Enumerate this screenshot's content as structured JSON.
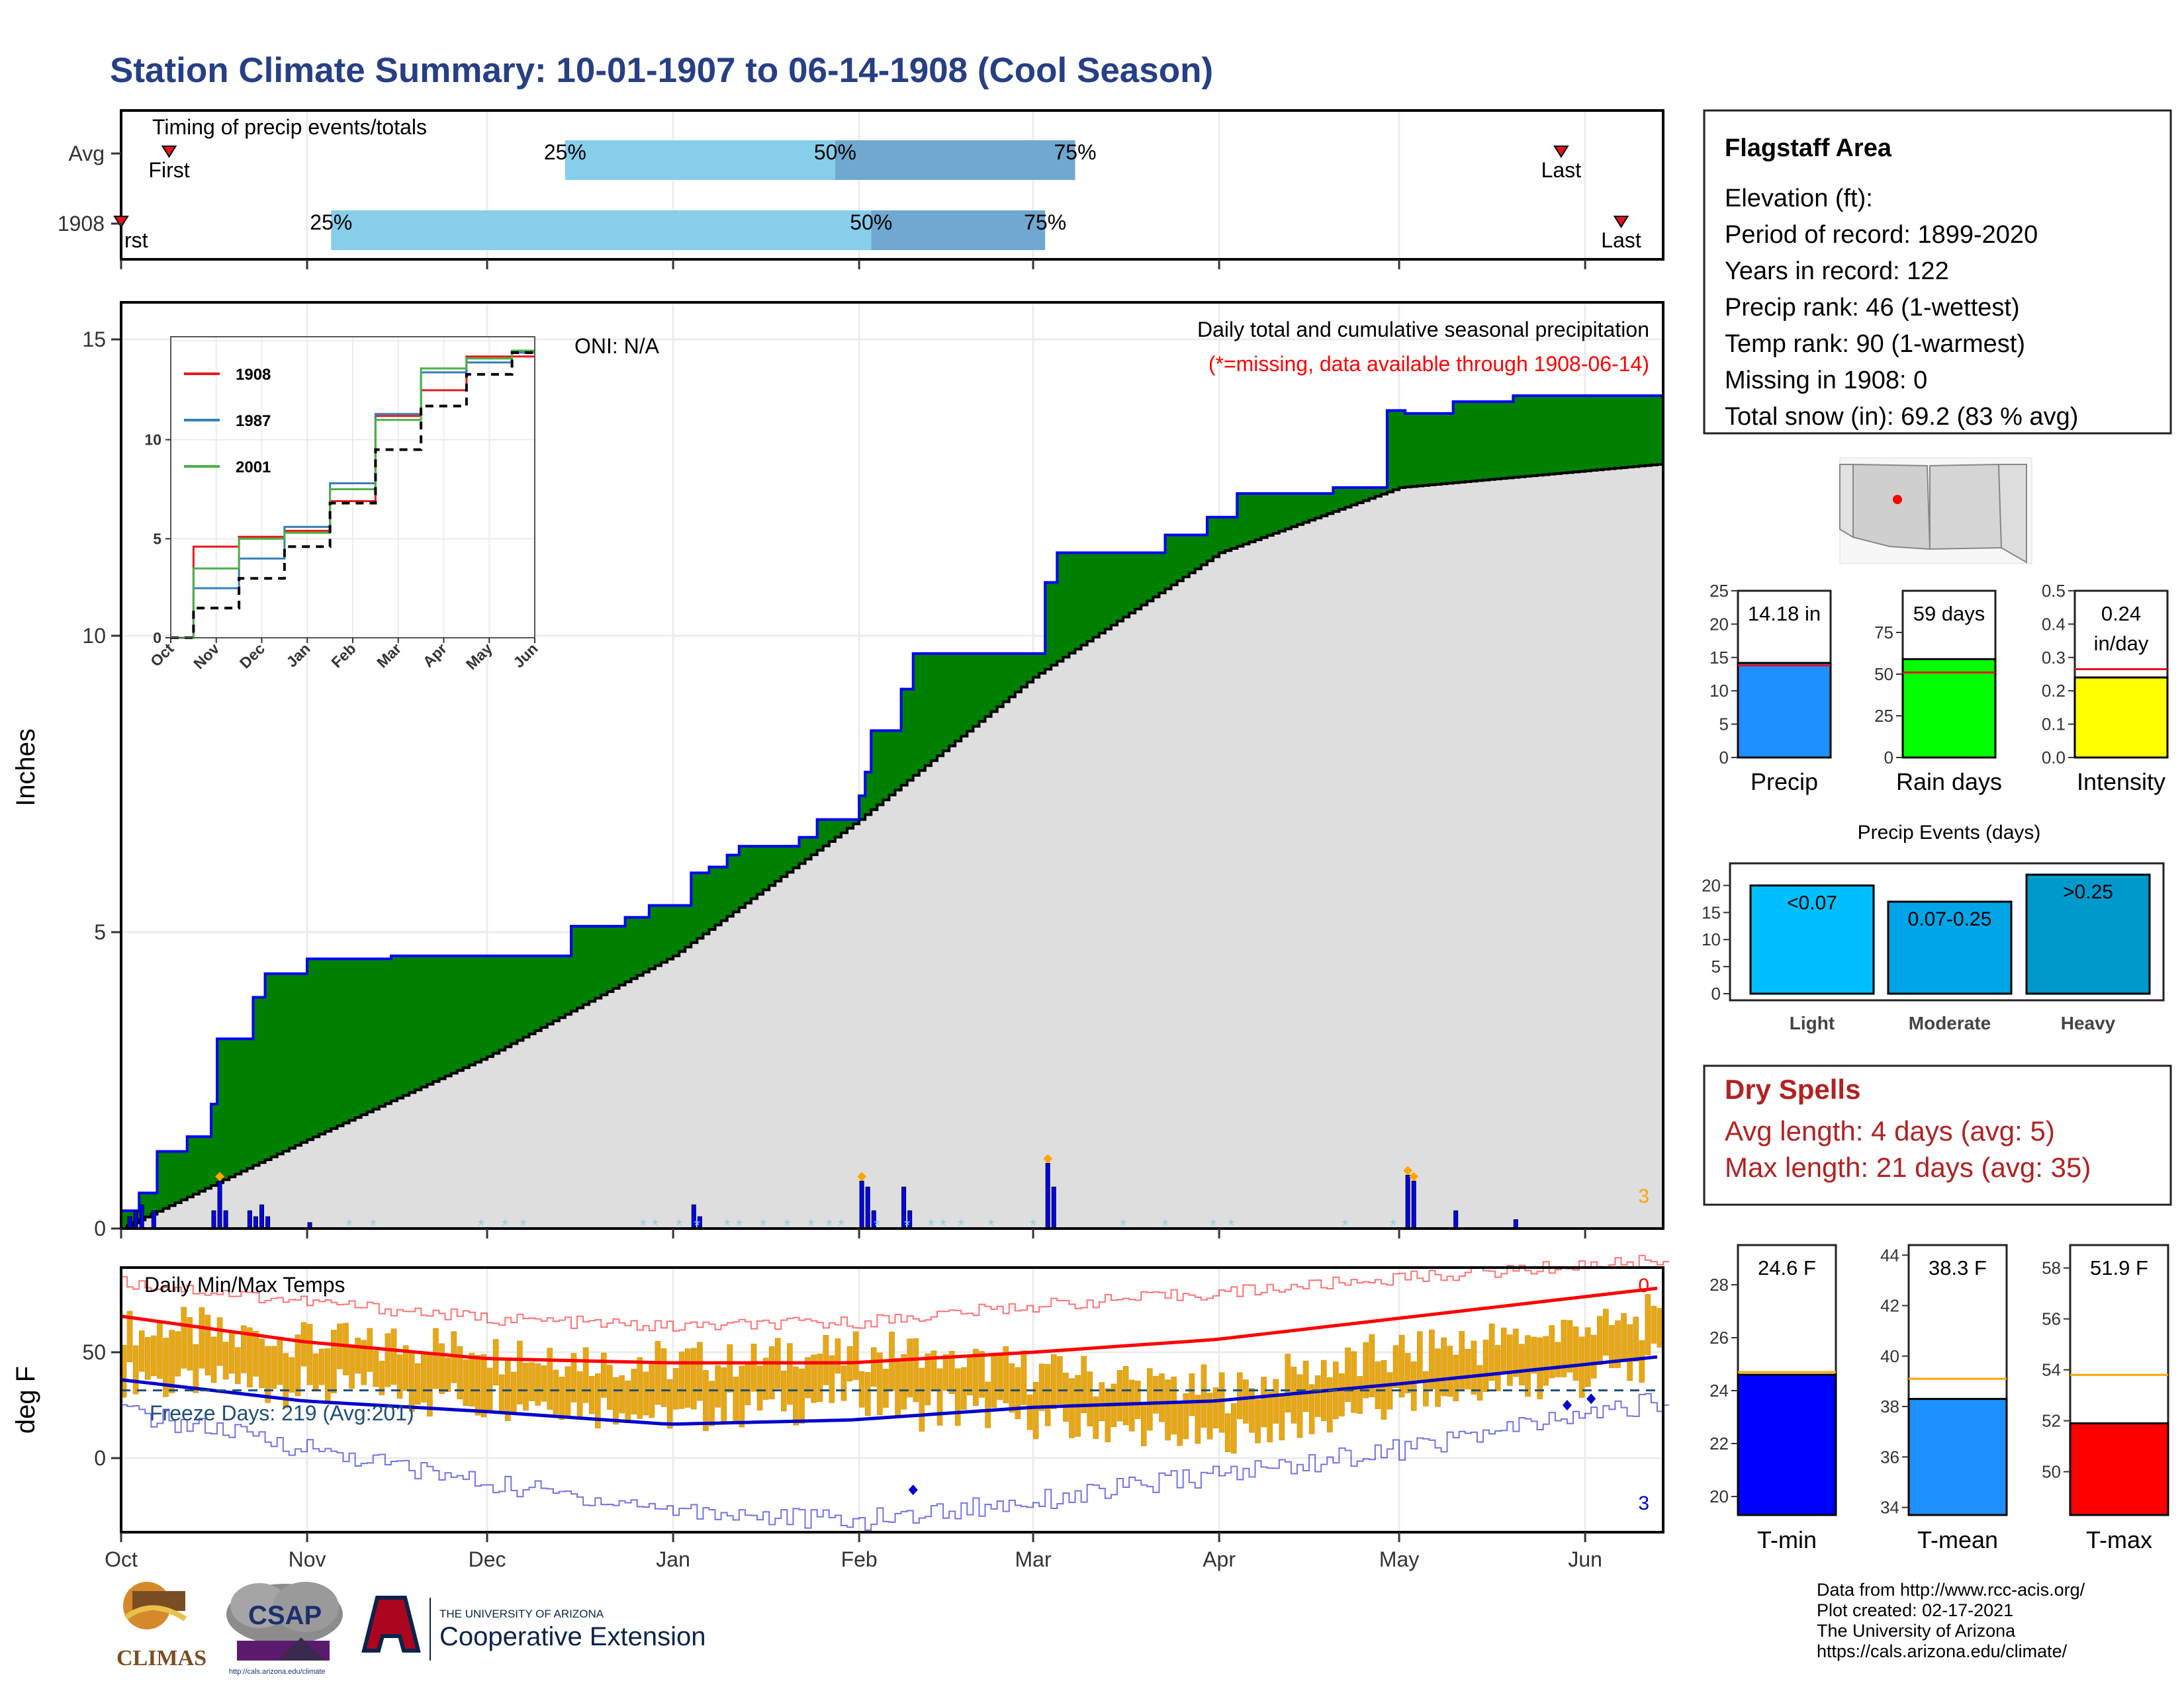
{
  "title": "Station Climate Summary: 10-01-1907 to 06-14-1908 (Cool Season)",
  "timing": {
    "label": "Timing of precip events/totals",
    "rows": [
      "Avg",
      "1908"
    ],
    "first_label": "First",
    "first_label_1908": "rst",
    "last_label": "Last",
    "pct_labels": [
      "25%",
      "50%",
      "75%"
    ],
    "avg": {
      "first": "1907-10-09",
      "p25": "1907-12-14",
      "p50": "1908-01-28",
      "p75": "1908-03-08",
      "last": "1908-05-28"
    },
    "y1908": {
      "first": "1907-10-01",
      "p25": "1907-11-05",
      "p50": "1908-02-03",
      "p75": "1908-03-03",
      "last": "1908-06-07"
    },
    "colors": {
      "light": "#87ceeb",
      "dark": "#6fa8d0",
      "marker": "#e8101a"
    }
  },
  "precip_panel": {
    "ylabel": "Inches",
    "title": "Daily total and cumulative seasonal precipitation",
    "note": "(*=missing, data available through 1908-06-14)",
    "oni": "ONI: N/A",
    "count_label": "3",
    "yticks": [
      "0",
      "5",
      "10",
      "15"
    ],
    "colors": {
      "observed": "#0000ff",
      "excess": "#008000",
      "average": "#dedede",
      "daily": "#0000ff",
      "missing": "#87ceeb",
      "extreme": "#ffa500"
    }
  },
  "inset": {
    "series": [
      "1908",
      "1987",
      "2001"
    ],
    "colors": [
      "#e41a1c",
      "#377eb8",
      "#4daf4a"
    ],
    "yticks": [
      "0",
      "5",
      "10"
    ],
    "months": [
      "Oct",
      "Nov",
      "Dec",
      "Jan",
      "Feb",
      "Mar",
      "Apr",
      "May",
      "Jun"
    ]
  },
  "temp_panel": {
    "ylabel": "deg F",
    "title": "Daily Min/Max Temps",
    "freeze": "Freeze Days: 219 (Avg:201)",
    "count_top": "0",
    "count_bottom": "3",
    "yticks": [
      "0",
      "50"
    ],
    "colors": {
      "bars": "#e6a817",
      "max_avg": "#ff0000",
      "min_avg": "#0000cd",
      "freeze_line": "#1f4e79"
    }
  },
  "x_months": [
    "Oct",
    "Nov",
    "Dec",
    "Jan",
    "Feb",
    "Mar",
    "Apr",
    "May",
    "Jun"
  ],
  "station": {
    "name": "Flagstaff Area",
    "lines": [
      "Elevation (ft):",
      "Period of record: 1899-2020",
      "Years in record: 122",
      "Precip rank: 46 (1-wettest)",
      "Temp rank: 90 (1-warmest)",
      "Missing in 1908: 0",
      "Total snow (in): 69.2 (83 % avg)"
    ]
  },
  "precip_bars": [
    {
      "label": "Precip",
      "value_text": "14.18 in",
      "value": 14.18,
      "avg": 13.8,
      "ymax": 25,
      "yticks": [
        "0",
        "5",
        "10",
        "15",
        "20",
        "25"
      ],
      "tick_values": [
        0,
        5,
        10,
        15,
        20,
        25
      ],
      "color": "#1e90ff"
    },
    {
      "label": "Rain days",
      "value_text": "59 days",
      "value": 59,
      "avg": 51,
      "ymax": 100,
      "yticks": [
        "0",
        "25",
        "50",
        "75"
      ],
      "tick_values": [
        0,
        25,
        50,
        75
      ],
      "color": "#00ff00"
    },
    {
      "label": "Intensity",
      "value_text": "0.24",
      "value_text2": "in/day",
      "value": 0.24,
      "avg": 0.265,
      "ymax": 0.5,
      "yticks": [
        "0.0",
        "0.1",
        "0.2",
        "0.3",
        "0.4",
        "0.5"
      ],
      "tick_values": [
        0,
        0.1,
        0.2,
        0.3,
        0.4,
        0.5
      ],
      "color": "#ffff00"
    }
  ],
  "events": {
    "title": "Precip Events (days)",
    "yticks": [
      "0",
      "5",
      "10",
      "15",
      "20"
    ],
    "bars": [
      {
        "label": "Light",
        "inner": "<0.07",
        "value": 20,
        "color": "#00bfff"
      },
      {
        "label": "Moderate",
        "inner": "0.07-0.25",
        "value": 17,
        "color": "#00a5e8"
      },
      {
        "label": "Heavy",
        "inner": ">0.25",
        "value": 22,
        "color": "#0099cc"
      }
    ]
  },
  "dry_spells": {
    "title": "Dry Spells",
    "lines": [
      "Avg length: 4 days (avg: 5)",
      "Max length: 21 days (avg: 35)"
    ],
    "color": "#b22222"
  },
  "temp_bars": [
    {
      "label": "T-min",
      "value_text": "24.6 F",
      "value": 24.6,
      "avg": 24.7,
      "ymin": 19.3,
      "ymax": 29.5,
      "yticks": [
        "20",
        "22",
        "24",
        "26",
        "28"
      ],
      "tick_values": [
        20,
        22,
        24,
        26,
        28
      ],
      "color": "#0000ff"
    },
    {
      "label": "T-mean",
      "value_text": "38.3 F",
      "value": 38.3,
      "avg": 39.1,
      "ymin": 33.7,
      "ymax": 44.4,
      "yticks": [
        "34",
        "36",
        "38",
        "40",
        "42",
        "44"
      ],
      "tick_values": [
        34,
        36,
        38,
        40,
        42,
        44
      ],
      "color": "#1e90ff"
    },
    {
      "label": "T-max",
      "value_text": "51.9 F",
      "value": 51.9,
      "avg": 53.8,
      "ymin": 48.3,
      "ymax": 58.9,
      "yticks": [
        "50",
        "52",
        "54",
        "56",
        "58"
      ],
      "tick_values": [
        50,
        52,
        54,
        56,
        58
      ],
      "color": "#ff0000"
    }
  ],
  "footer": [
    "Data from http://www.rcc-acis.org/",
    "Plot created: 02-17-2021",
    "The University of Arizona",
    "https://cals.arizona.edu/climate/"
  ],
  "logos": {
    "climas": "CLIMAS",
    "csap": "CSAP",
    "csap_url": "http://cals.arizona.edu/climate",
    "ua_small": "THE UNIVERSITY OF ARIZONA",
    "ua_big": "Cooperative Extension"
  },
  "chart_data": [
    {
      "type": "area",
      "title": "Daily total and cumulative seasonal precipitation",
      "ylabel": "Inches",
      "ylim": [
        0,
        15.3
      ],
      "series": [
        {
          "name": "Observed cumulative 1908",
          "x": [
            "1907-10-01",
            "1907-10-04",
            "1907-10-07",
            "1907-10-12",
            "1907-10-16",
            "1907-10-17",
            "1907-10-23",
            "1907-10-25",
            "1907-11-01",
            "1907-11-15",
            "1907-12-15",
            "1907-12-24",
            "1907-12-28",
            "1908-01-04",
            "1908-01-07",
            "1908-01-10",
            "1908-01-12",
            "1908-01-22",
            "1908-01-25",
            "1908-02-01",
            "1908-02-02",
            "1908-02-03",
            "1908-02-08",
            "1908-02-10",
            "1908-03-03",
            "1908-03-05",
            "1908-03-23",
            "1908-03-30",
            "1908-04-04",
            "1908-04-20",
            "1908-04-29",
            "1908-05-02",
            "1908-05-10",
            "1908-05-20",
            "1908-06-14"
          ],
          "y": [
            0.3,
            0.6,
            1.3,
            1.55,
            2.1,
            3.2,
            3.9,
            4.3,
            4.55,
            4.6,
            5.1,
            5.25,
            5.45,
            6.0,
            6.1,
            6.3,
            6.45,
            6.6,
            6.9,
            7.3,
            7.7,
            8.4,
            9.1,
            9.7,
            10.9,
            11.4,
            11.7,
            12.0,
            12.4,
            12.5,
            13.8,
            13.75,
            13.95,
            14.05,
            14.18
          ]
        },
        {
          "name": "Average cumulative",
          "x": [
            "1907-10-01",
            "1907-11-01",
            "1907-12-01",
            "1908-01-01",
            "1908-02-01",
            "1908-03-01",
            "1908-04-01",
            "1908-05-01",
            "1908-06-14"
          ],
          "y": [
            0.0,
            1.5,
            2.9,
            4.6,
            6.9,
            9.3,
            11.4,
            12.5,
            12.9
          ]
        }
      ],
      "daily_precip_in": {
        "x": [
          "1907-10-02",
          "1907-10-03",
          "1907-10-04",
          "1907-10-06",
          "1907-10-16",
          "1907-10-17",
          "1907-10-18",
          "1907-10-22",
          "1907-10-23",
          "1907-10-24",
          "1907-10-25",
          "1907-11-01",
          "1908-01-04",
          "1908-01-05",
          "1908-02-01",
          "1908-02-02",
          "1908-02-03",
          "1908-02-08",
          "1908-02-09",
          "1908-03-03",
          "1908-03-04",
          "1908-05-02",
          "1908-05-03",
          "1908-05-10",
          "1908-05-20"
        ],
        "y": [
          0.2,
          0.3,
          0.4,
          0.3,
          0.3,
          0.8,
          0.3,
          0.3,
          0.2,
          0.4,
          0.2,
          0.1,
          0.4,
          0.2,
          0.8,
          0.7,
          0.3,
          0.7,
          0.3,
          1.1,
          0.7,
          0.9,
          0.8,
          0.3,
          0.15
        ]
      }
    },
    {
      "type": "line",
      "title": "",
      "ylim": [
        0,
        15
      ],
      "series": [
        {
          "name": "1908",
          "x": [
            "Oct",
            "Nov",
            "Dec",
            "Jan",
            "Feb",
            "Mar",
            "Apr",
            "May",
            "Jun"
          ],
          "y": [
            0.0,
            4.6,
            5.1,
            5.4,
            6.9,
            11.2,
            12.5,
            14.2,
            14.2
          ]
        },
        {
          "name": "1987",
          "x": [
            "Oct",
            "Nov",
            "Dec",
            "Jan",
            "Feb",
            "Mar",
            "Apr",
            "May",
            "Jun"
          ],
          "y": [
            0.0,
            2.5,
            4.0,
            5.6,
            7.8,
            11.3,
            13.4,
            13.9,
            14.4
          ]
        },
        {
          "name": "2001",
          "x": [
            "Oct",
            "Nov",
            "Dec",
            "Jan",
            "Feb",
            "Mar",
            "Apr",
            "May",
            "Jun"
          ],
          "y": [
            0.0,
            3.5,
            5.0,
            5.3,
            7.5,
            11.0,
            13.6,
            14.1,
            14.5
          ]
        },
        {
          "name": "Average",
          "x": [
            "Oct",
            "Nov",
            "Dec",
            "Jan",
            "Feb",
            "Mar",
            "Apr",
            "May",
            "Jun"
          ],
          "y": [
            0.0,
            1.5,
            3.0,
            4.6,
            6.8,
            9.5,
            11.7,
            13.3,
            14.4
          ]
        }
      ]
    },
    {
      "type": "bar",
      "title": "Daily Min/Max Temps",
      "ylabel": "deg F",
      "ylim": [
        -35,
        90
      ],
      "series": [
        {
          "name": "Average max",
          "x": [
            "Oct",
            "Nov",
            "Dec",
            "Jan",
            "Feb",
            "Mar",
            "Apr",
            "May",
            "Jun"
          ],
          "y": [
            67,
            55,
            47,
            45,
            45,
            50,
            56,
            66,
            76
          ]
        },
        {
          "name": "Average min",
          "x": [
            "Oct",
            "Nov",
            "Dec",
            "Jan",
            "Feb",
            "Mar",
            "Apr",
            "May",
            "Jun"
          ],
          "y": [
            37,
            27,
            22,
            16,
            18,
            24,
            27,
            35,
            44
          ]
        },
        {
          "name": "Record high",
          "x": [
            "Oct",
            "Nov",
            "Dec",
            "Jan",
            "Feb",
            "Mar",
            "Apr",
            "May",
            "Jun"
          ],
          "y": [
            83,
            74,
            66,
            62,
            64,
            72,
            78,
            85,
            91
          ]
        },
        {
          "name": "Record low",
          "x": [
            "Oct",
            "Nov",
            "Dec",
            "Jan",
            "Feb",
            "Mar",
            "Apr",
            "May",
            "Jun"
          ],
          "y": [
            22,
            5,
            -12,
            -24,
            -30,
            -20,
            -8,
            4,
            20
          ]
        }
      ],
      "freeze_threshold_F": 32,
      "daily_mid_F": [
        50,
        45,
        40,
        32,
        40,
        30,
        20,
        38,
        50
      ]
    }
  ]
}
